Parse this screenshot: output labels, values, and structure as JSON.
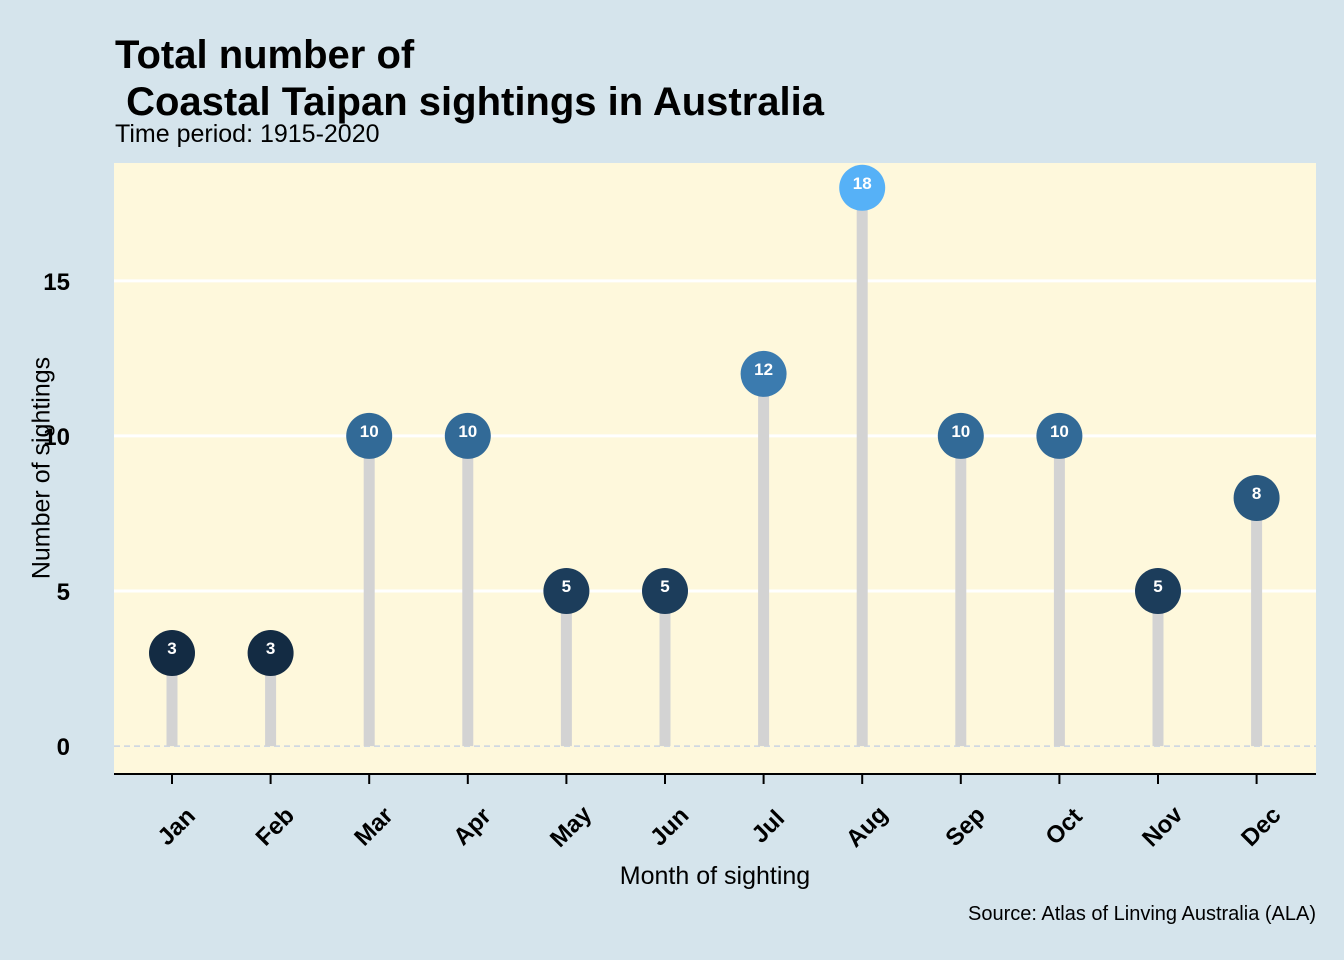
{
  "chart_data": {
    "type": "lollipop",
    "title": "Total number of\n Coastal Taipan sightings in Australia",
    "subtitle": "Time period: 1915-2020",
    "xlabel": "Month of sighting",
    "ylabel": "Number of sightings",
    "caption": "Source: Atlas of Linving Australia (ALA)",
    "categories": [
      "Jan",
      "Feb",
      "Mar",
      "Apr",
      "May",
      "Jun",
      "Jul",
      "Aug",
      "Sep",
      "Oct",
      "Nov",
      "Dec"
    ],
    "values": [
      3,
      3,
      10,
      10,
      5,
      5,
      12,
      18,
      10,
      10,
      5,
      8
    ],
    "data_labels": [
      "3",
      "3",
      "10",
      "10",
      "5",
      "5",
      "12",
      "18",
      "10",
      "10",
      "5",
      "8"
    ],
    "yticks": [
      0,
      5,
      10,
      15
    ],
    "ytick_labels": [
      "0",
      "5",
      "10",
      "15"
    ],
    "ylim": [
      -0.9,
      18.8
    ],
    "grid": true,
    "legend": "none",
    "colors": {
      "page_background": "#d5e4ec",
      "panel_background": "#fef8dc",
      "gridline": "#ffffff",
      "stem": "#d3d3d3",
      "zero_line": "#c9d3e3",
      "axis_line": "#000000",
      "value_color_low": "#132b43",
      "value_color_high": "#56b1f7"
    }
  }
}
